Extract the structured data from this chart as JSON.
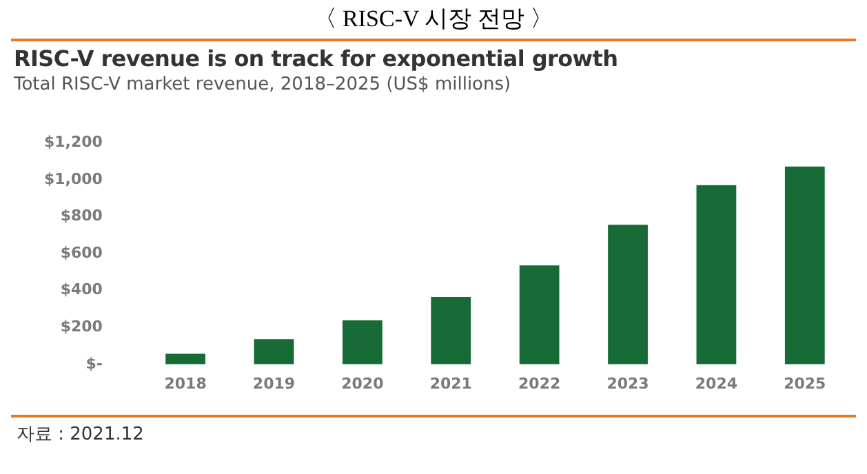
{
  "chart_data": {
    "type": "bar",
    "title": "RISC-V revenue is on track for exponential growth",
    "subtitle": "Total RISC-V market revenue, 2018–2025 (US$ millions)",
    "annotations": [
      "〈 RISC-V 시장 전망 〉",
      "자료 : 2021.12"
    ],
    "categories": [
      "2018",
      "2019",
      "2020",
      "2021",
      "2022",
      "2023",
      "2024",
      "2025"
    ],
    "values": [
      57,
      136,
      238,
      365,
      536,
      756,
      970,
      1071
    ],
    "color": "#156a35",
    "ylim": [
      0,
      1200
    ],
    "yticks": [
      {
        "value": 0,
        "label": "$-"
      },
      {
        "value": 200,
        "label": "$200"
      },
      {
        "value": 400,
        "label": "$400"
      },
      {
        "value": 600,
        "label": "$600"
      },
      {
        "value": 800,
        "label": "$800"
      },
      {
        "value": 1000,
        "label": "$1,000"
      },
      {
        "value": 1200,
        "label": "$1,200"
      }
    ],
    "grid": false,
    "legend": false
  }
}
